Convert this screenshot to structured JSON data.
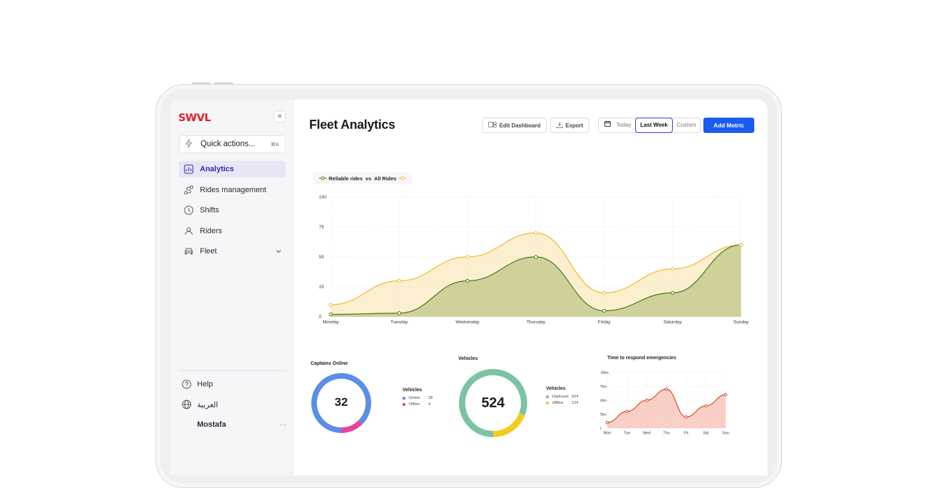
{
  "app": {
    "logo": "SWVL",
    "collapse_icon": "«"
  },
  "quick_actions": {
    "label": "Quick actions...",
    "shortcut": "⌘K"
  },
  "sidebar": {
    "items": [
      {
        "label": "Analytics",
        "icon": "analytics-icon",
        "active": true
      },
      {
        "label": "Rides management",
        "icon": "route-icon"
      },
      {
        "label": "Shifts",
        "icon": "clock-icon"
      },
      {
        "label": "Riders",
        "icon": "users-icon"
      },
      {
        "label": "Fleet",
        "icon": "car-icon",
        "expandable": true
      }
    ],
    "help": "Help",
    "language": "العربية",
    "user": "Mostafa",
    "more": "···"
  },
  "header": {
    "title": "Fleet Analytics",
    "edit_dashboard": "Edit Dashboard",
    "export": "Export",
    "range_today": "Today",
    "range_last_week": "Last Week",
    "range_custom": "Custom",
    "add_metric": "Add Metric",
    "accent": "#1a5bf0"
  },
  "main_chart_legend": {
    "series_a": "Reliable rides",
    "vs": "vs",
    "series_b": "All Rides"
  },
  "chart_data": [
    {
      "type": "area",
      "categories": [
        "Monday",
        "Tuesday",
        "Wednesday",
        "Thursday",
        "Friday",
        "Saturday",
        "Sunday"
      ],
      "series": [
        {
          "name": "Reliable rides",
          "values": [
            2,
            3,
            30,
            50,
            5,
            20,
            60
          ],
          "color": "#3f7a1a"
        },
        {
          "name": "All Rides",
          "values": [
            10,
            30,
            50,
            70,
            20,
            40,
            60
          ],
          "color": "#f0b82a"
        }
      ],
      "ylim": [
        0,
        100
      ],
      "yticks": [
        "0",
        "25",
        "50",
        "75",
        "100"
      ],
      "grid": true
    },
    {
      "type": "pie",
      "title": "Captains Online",
      "center_value": "32",
      "legend_title": "Vehicles",
      "slices": [
        {
          "label": "Online",
          "value": 28,
          "color": "#5b8ee6"
        },
        {
          "label": "Offline",
          "value": 4,
          "color": "#e8449e"
        }
      ]
    },
    {
      "type": "pie",
      "title": "Vehicles",
      "center_value": "524",
      "legend_title": "Vehicles",
      "slices": [
        {
          "label": "Deployed",
          "value": 524,
          "color": "#7cc3a3"
        },
        {
          "label": "Offline",
          "value": 124,
          "color": "#f2cc1f"
        }
      ]
    },
    {
      "type": "area",
      "title": "Time to respond emergencies",
      "categories": [
        "Mon",
        "Tue",
        "Wed",
        "Thu",
        "Fri",
        "Sat",
        "Sun"
      ],
      "series": [
        {
          "name": "",
          "values": [
            10,
            30,
            50,
            70,
            20,
            40,
            60
          ],
          "color": "#e0451c"
        }
      ],
      "ylim": [
        0,
        100
      ],
      "yticks": [
        "0",
        "25m",
        "50m",
        "75m",
        "100m"
      ],
      "grid": true
    }
  ]
}
